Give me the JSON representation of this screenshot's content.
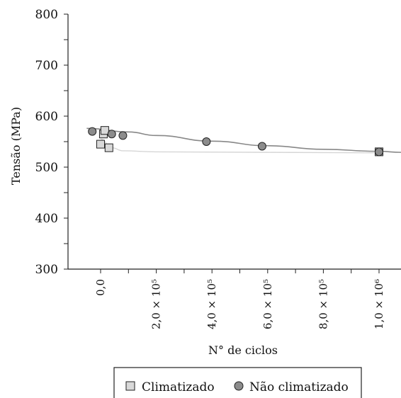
{
  "chart_data": {
    "type": "scatter",
    "title": "",
    "xlabel": "N° de ciclos",
    "ylabel": "Tensão (MPa)",
    "ylim": [
      300,
      800
    ],
    "xlim": [
      -50000,
      1080000
    ],
    "y_ticks": [
      300,
      400,
      500,
      600,
      700,
      800
    ],
    "x_ticks": [
      {
        "value": 0,
        "label": "0,0"
      },
      {
        "value": 200000,
        "label": "2,0 × 10⁵"
      },
      {
        "value": 400000,
        "label": "4,0 × 10⁵"
      },
      {
        "value": 600000,
        "label": "6,0 × 10⁵"
      },
      {
        "value": 800000,
        "label": "8,0 × 10⁵"
      },
      {
        "value": 1000000,
        "label": "1,0 × 10⁶"
      }
    ],
    "grid": false,
    "legend_position": "bottom",
    "series": [
      {
        "name": "Climatizado",
        "marker": "square",
        "color": "#d9d9d9",
        "stroke": "#222222",
        "points": [
          {
            "x": 0,
            "y": 545
          },
          {
            "x": 10000,
            "y": 565
          },
          {
            "x": 15000,
            "y": 572
          },
          {
            "x": 30000,
            "y": 538
          },
          {
            "x": 1000000,
            "y": 530
          }
        ],
        "trend": {
          "color": "#d6d6d6",
          "points": [
            [
              0,
              555
            ],
            [
              40000,
              538
            ],
            [
              80000,
              532
            ],
            [
              200000,
              530
            ],
            [
              1000000,
              528
            ]
          ]
        }
      },
      {
        "name": "Não climatizado",
        "marker": "circle",
        "color": "#8c8c8c",
        "stroke": "#222222",
        "points": [
          {
            "x": -30000,
            "y": 570
          },
          {
            "x": 40000,
            "y": 565
          },
          {
            "x": 80000,
            "y": 562
          },
          {
            "x": 380000,
            "y": 550
          },
          {
            "x": 580000,
            "y": 541
          },
          {
            "x": 1000000,
            "y": 530
          }
        ],
        "trend": {
          "color": "#888888",
          "points": [
            [
              -50000,
              576
            ],
            [
              100000,
              569
            ],
            [
              200000,
              562
            ],
            [
              400000,
              551
            ],
            [
              600000,
              542
            ],
            [
              800000,
              535
            ],
            [
              1000000,
              531
            ],
            [
              1080000,
              529
            ]
          ]
        }
      }
    ]
  }
}
